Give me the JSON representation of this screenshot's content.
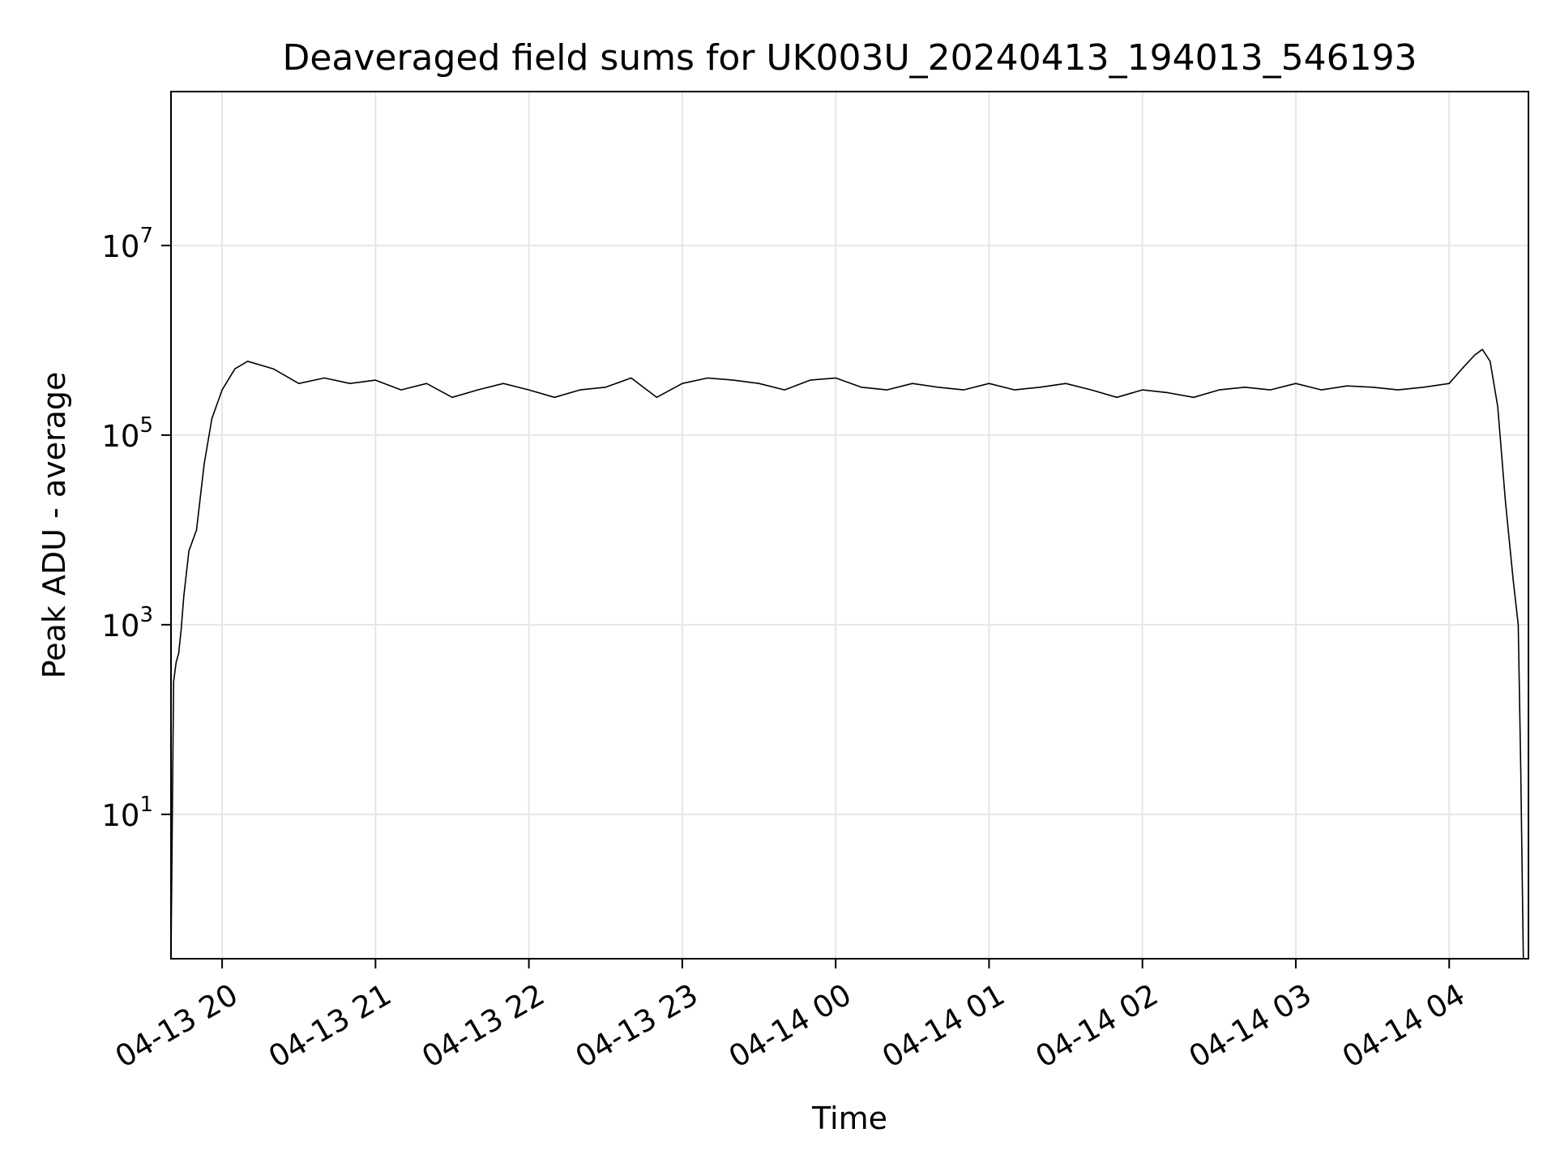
{
  "chart_data": {
    "type": "line",
    "title": "Deaveraged field sums for UK003U_20240413_194013_546193",
    "xlabel": "Time",
    "ylabel": "Peak ADU - average",
    "x_ticks": [
      "04-13 20",
      "04-13 21",
      "04-13 22",
      "04-13 23",
      "04-14 00",
      "04-14 01",
      "04-14 02",
      "04-14 03",
      "04-14 04"
    ],
    "y_ticks": [
      {
        "base": "10",
        "exp": "1",
        "value": 10
      },
      {
        "base": "10",
        "exp": "3",
        "value": 1000
      },
      {
        "base": "10",
        "exp": "5",
        "value": 100000
      },
      {
        "base": "10",
        "exp": "7",
        "value": 10000000
      }
    ],
    "yscale": "log",
    "ylim": [
      0.3,
      420000000
    ],
    "xlim": [
      "2024-04-13 19:40",
      "2024-04-14 04:31"
    ],
    "grid": true,
    "line_color": "#000000",
    "series": [
      {
        "x": [
          "2024-04-13 19:40",
          "2024-04-13 19:41",
          "2024-04-13 19:42",
          "2024-04-13 19:43",
          "2024-04-13 19:44",
          "2024-04-13 19:45",
          "2024-04-13 19:47",
          "2024-04-13 19:50",
          "2024-04-13 19:53",
          "2024-04-13 19:56",
          "2024-04-13 20:00",
          "2024-04-13 20:05",
          "2024-04-13 20:10",
          "2024-04-13 20:20",
          "2024-04-13 20:30",
          "2024-04-13 20:40",
          "2024-04-13 20:50",
          "2024-04-13 21:00",
          "2024-04-13 21:10",
          "2024-04-13 21:20",
          "2024-04-13 21:30",
          "2024-04-13 21:40",
          "2024-04-13 21:50",
          "2024-04-13 22:00",
          "2024-04-13 22:10",
          "2024-04-13 22:20",
          "2024-04-13 22:30",
          "2024-04-13 22:40",
          "2024-04-13 22:50",
          "2024-04-13 23:00",
          "2024-04-13 23:10",
          "2024-04-13 23:20",
          "2024-04-13 23:30",
          "2024-04-13 23:40",
          "2024-04-13 23:50",
          "2024-04-14 00:00",
          "2024-04-14 00:10",
          "2024-04-14 00:20",
          "2024-04-14 00:30",
          "2024-04-14 00:40",
          "2024-04-14 00:50",
          "2024-04-14 01:00",
          "2024-04-14 01:10",
          "2024-04-14 01:20",
          "2024-04-14 01:30",
          "2024-04-14 01:40",
          "2024-04-14 01:50",
          "2024-04-14 02:00",
          "2024-04-14 02:10",
          "2024-04-14 02:20",
          "2024-04-14 02:30",
          "2024-04-14 02:40",
          "2024-04-14 02:50",
          "2024-04-14 03:00",
          "2024-04-14 03:10",
          "2024-04-14 03:20",
          "2024-04-14 03:30",
          "2024-04-14 03:40",
          "2024-04-14 03:50",
          "2024-04-14 04:00",
          "2024-04-14 04:05",
          "2024-04-14 04:10",
          "2024-04-14 04:13",
          "2024-04-14 04:16",
          "2024-04-14 04:19",
          "2024-04-14 04:22",
          "2024-04-14 04:25",
          "2024-04-14 04:27",
          "2024-04-14 04:28",
          "2024-04-14 04:29"
        ],
        "y": [
          0.3,
          250,
          400,
          500,
          900,
          2000,
          6000,
          10000,
          50000,
          150000,
          300000,
          500000,
          600000,
          500000,
          350000,
          400000,
          350000,
          380000,
          300000,
          350000,
          250000,
          300000,
          350000,
          300000,
          250000,
          300000,
          320000,
          400000,
          250000,
          350000,
          400000,
          380000,
          350000,
          300000,
          380000,
          400000,
          320000,
          300000,
          350000,
          320000,
          300000,
          350000,
          300000,
          320000,
          350000,
          300000,
          250000,
          300000,
          280000,
          250000,
          300000,
          320000,
          300000,
          350000,
          300000,
          330000,
          320000,
          300000,
          320000,
          350000,
          500000,
          700000,
          800000,
          600000,
          200000,
          20000,
          3000,
          1000,
          30,
          0.3
        ]
      }
    ]
  }
}
